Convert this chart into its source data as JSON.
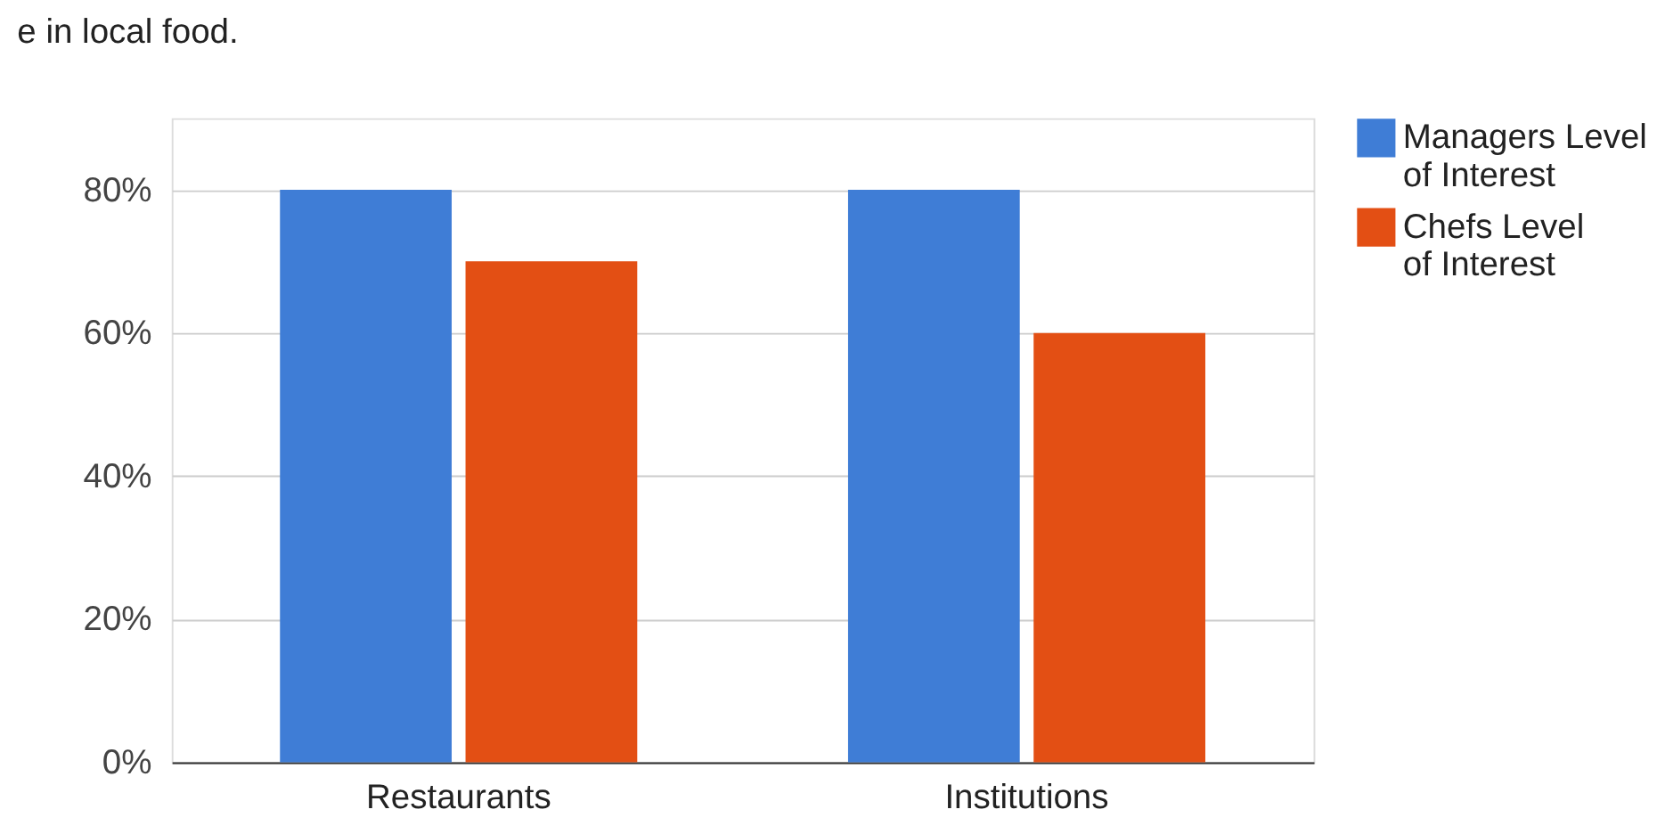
{
  "chart_data": {
    "type": "bar",
    "title": "e in local food.",
    "categories": [
      "Restaurants",
      "Institutions"
    ],
    "series": [
      {
        "name": "Managers Level of Interest",
        "color": "#3f7dd6",
        "values": [
          80,
          80
        ]
      },
      {
        "name": "Chefs Level of Interest",
        "color": "#e34f14",
        "values": [
          70,
          60
        ]
      }
    ],
    "ylim": [
      0,
      90
    ],
    "yticks": [
      {
        "value": 0,
        "label": "0%"
      },
      {
        "value": 20,
        "label": "20%"
      },
      {
        "value": 40,
        "label": "40%"
      },
      {
        "value": 60,
        "label": "60%"
      },
      {
        "value": 80,
        "label": "80%"
      }
    ],
    "grid": "y",
    "legend": "top right"
  }
}
